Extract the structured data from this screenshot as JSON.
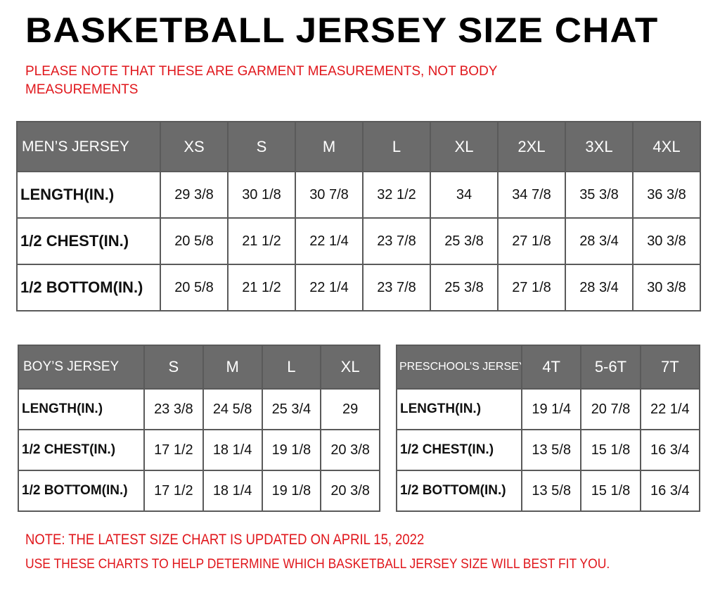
{
  "title": "BASKETBALL JERSEY SIZE CHAT",
  "subtitle_note": "PLEASE NOTE THAT THESE ARE GARMENT MEASUREMENTS, NOT BODY MEASUREMENTS",
  "colors": {
    "header_bg": "#6b6b6b",
    "note_red": "#e0161b"
  },
  "tables": {
    "men": {
      "label": "MEN’S JERSEY",
      "sizes": [
        "XS",
        "S",
        "M",
        "L",
        "XL",
        "2XL",
        "3XL",
        "4XL"
      ],
      "rows": [
        {
          "label": "LENGTH(IN.)",
          "values": [
            "29 3/8",
            "30 1/8",
            "30 7/8",
            "32 1/2",
            "34",
            "34 7/8",
            "35 3/8",
            "36 3/8"
          ]
        },
        {
          "label": "1/2 CHEST(IN.)",
          "values": [
            "20 5/8",
            "21 1/2",
            "22 1/4",
            "23 7/8",
            "25 3/8",
            "27 1/8",
            "28 3/4",
            "30 3/8"
          ]
        },
        {
          "label": "1/2 BOTTOM(IN.)",
          "values": [
            "20 5/8",
            "21 1/2",
            "22 1/4",
            "23 7/8",
            "25 3/8",
            "27 1/8",
            "28 3/4",
            "30 3/8"
          ]
        }
      ]
    },
    "boy": {
      "label": "BOY’S JERSEY",
      "sizes": [
        "S",
        "M",
        "L",
        "XL"
      ],
      "rows": [
        {
          "label": "LENGTH(IN.)",
          "values": [
            "23 3/8",
            "24 5/8",
            "25 3/4",
            "29"
          ]
        },
        {
          "label": "1/2 CHEST(IN.)",
          "values": [
            "17 1/2",
            "18 1/4",
            "19 1/8",
            "20 3/8"
          ]
        },
        {
          "label": "1/2 BOTTOM(IN.)",
          "values": [
            "17 1/2",
            "18 1/4",
            "19 1/8",
            "20 3/8"
          ]
        }
      ]
    },
    "pre": {
      "label": "PRESCHOOL’S JERSEY",
      "sizes": [
        "4T",
        "5-6T",
        "7T"
      ],
      "rows": [
        {
          "label": "LENGTH(IN.)",
          "values": [
            "19 1/4",
            "20 7/8",
            "22 1/4"
          ]
        },
        {
          "label": "1/2 CHEST(IN.)",
          "values": [
            "13 5/8",
            "15 1/8",
            "16 3/4"
          ]
        },
        {
          "label": "1/2 BOTTOM(IN.)",
          "values": [
            "13 5/8",
            "15 1/8",
            "16 3/4"
          ]
        }
      ]
    }
  },
  "footer": {
    "update_note": "NOTE: THE LATEST SIZE CHART IS UPDATED ON APRIL 15, 2022",
    "usage_note": "USE THESE CHARTS TO HELP DETERMINE WHICH  BASKETBALL JERSEY  SIZE WILL BEST FIT YOU."
  }
}
